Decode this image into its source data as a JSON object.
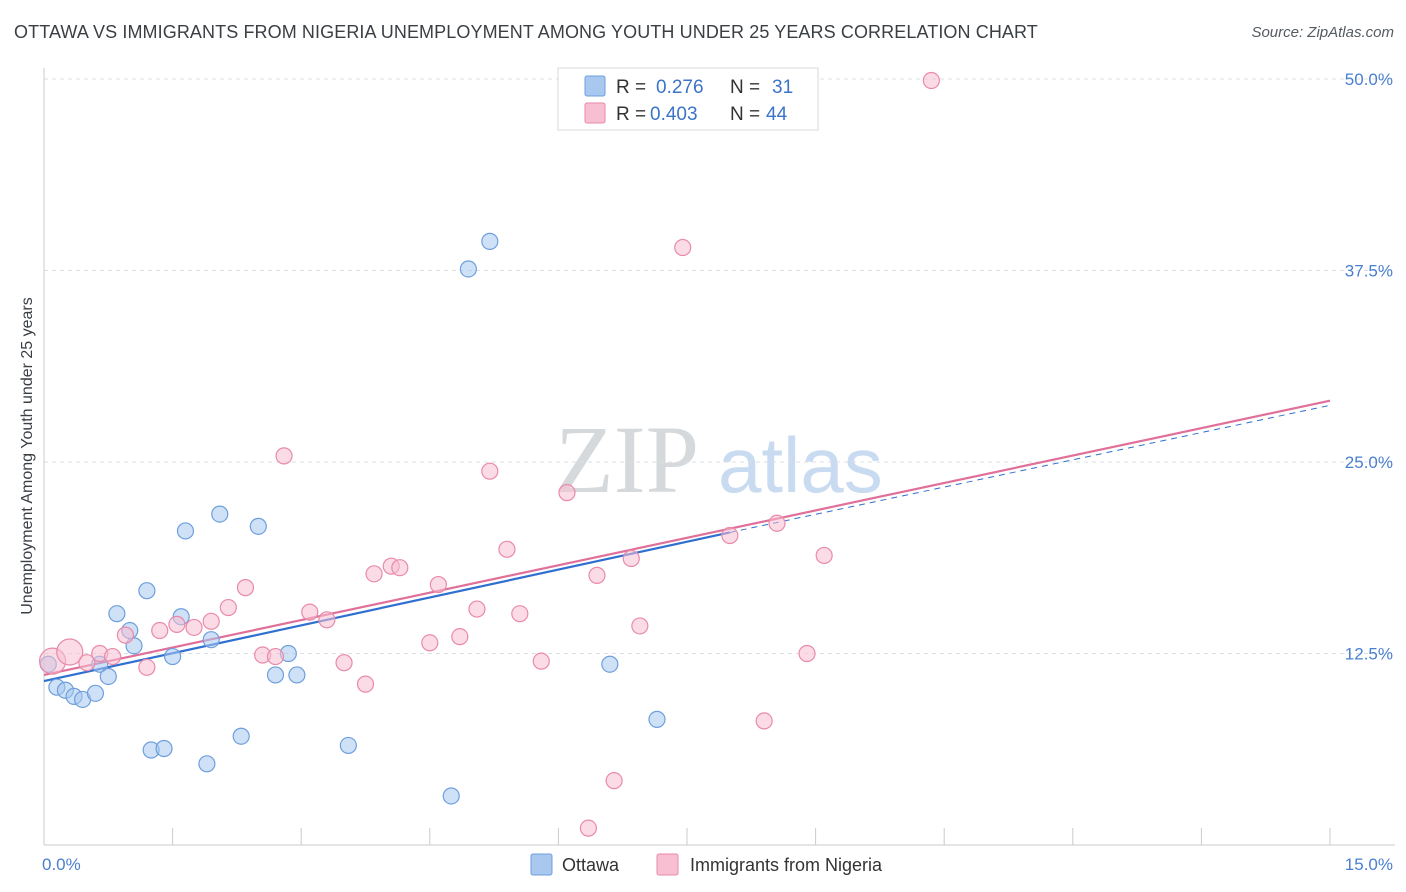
{
  "chart_data": {
    "type": "scatter",
    "title": "OTTAWA VS IMMIGRANTS FROM NIGERIA UNEMPLOYMENT AMONG YOUTH UNDER 25 YEARS CORRELATION CHART",
    "source": "Source: ZipAtlas.com",
    "xlabel": "",
    "ylabel": "Unemployment Among Youth under 25 years",
    "xlim": [
      0,
      15
    ],
    "ylim": [
      0,
      50
    ],
    "x_tick_labels": [
      "0.0%",
      "15.0%"
    ],
    "y_ticks": [
      12.5,
      25.0,
      37.5,
      50.0
    ],
    "y_tick_labels": [
      "12.5%",
      "25.0%",
      "37.5%",
      "50.0%"
    ],
    "grid": true,
    "legend_position": "top-center",
    "watermark": {
      "part1": "ZIP",
      "part2": "atlas"
    },
    "legend": [
      {
        "name": "Ottawa",
        "r_label": "R =",
        "r_value": "0.276",
        "n_label": "N =",
        "n_value": "31",
        "color": "#a8c8f0",
        "stroke": "#6e9fdc"
      },
      {
        "name": "Immigrants from Nigeria",
        "r_label": "R =",
        "r_value": "0.403",
        "n_label": "N =",
        "n_value": "44",
        "color": "#f7bfd1",
        "stroke": "#e98aa9"
      }
    ],
    "series": [
      {
        "name": "Ottawa",
        "color": "#a8c8f0",
        "stroke": "#6e9fdc",
        "trend": {
          "x": [
            0,
            8.0
          ],
          "y": [
            10.7,
            20.4
          ],
          "color": "#2f6fd0",
          "dash_x": [
            8.0,
            15.0
          ],
          "dash_y": [
            20.4,
            28.7
          ]
        },
        "points": [
          [
            0.05,
            11.8
          ],
          [
            0.15,
            10.3
          ],
          [
            0.25,
            10.1
          ],
          [
            0.35,
            9.7
          ],
          [
            0.45,
            9.5
          ],
          [
            0.6,
            9.9
          ],
          [
            0.65,
            11.8
          ],
          [
            0.75,
            11.0
          ],
          [
            0.85,
            15.1
          ],
          [
            1.0,
            14.0
          ],
          [
            1.05,
            13.0
          ],
          [
            1.2,
            16.6
          ],
          [
            1.25,
            6.2
          ],
          [
            1.4,
            6.3
          ],
          [
            1.5,
            12.3
          ],
          [
            1.6,
            14.9
          ],
          [
            1.65,
            20.5
          ],
          [
            1.9,
            5.3
          ],
          [
            1.95,
            13.4
          ],
          [
            2.05,
            21.6
          ],
          [
            2.3,
            7.1
          ],
          [
            2.5,
            20.8
          ],
          [
            2.7,
            11.1
          ],
          [
            2.85,
            12.5
          ],
          [
            2.95,
            11.1
          ],
          [
            3.55,
            6.5
          ],
          [
            4.75,
            3.2
          ],
          [
            4.95,
            37.6
          ],
          [
            5.2,
            39.4
          ],
          [
            6.6,
            11.8
          ],
          [
            7.15,
            8.2
          ]
        ]
      },
      {
        "name": "Immigrants from Nigeria",
        "color": "#f7bfd1",
        "stroke": "#e98aa9",
        "trend": {
          "x": [
            0,
            15.0
          ],
          "y": [
            11.1,
            29.0
          ],
          "color": "#e0709a"
        },
        "points": [
          [
            0.1,
            12.0
          ],
          [
            0.3,
            12.6
          ],
          [
            0.5,
            11.9
          ],
          [
            0.65,
            12.5
          ],
          [
            0.8,
            12.3
          ],
          [
            0.95,
            13.7
          ],
          [
            1.2,
            11.6
          ],
          [
            1.35,
            14.0
          ],
          [
            1.55,
            14.4
          ],
          [
            1.75,
            14.2
          ],
          [
            1.95,
            14.6
          ],
          [
            2.15,
            15.5
          ],
          [
            2.35,
            16.8
          ],
          [
            2.55,
            12.4
          ],
          [
            2.7,
            12.3
          ],
          [
            2.8,
            25.4
          ],
          [
            3.1,
            15.2
          ],
          [
            3.3,
            14.7
          ],
          [
            3.5,
            11.9
          ],
          [
            3.75,
            10.5
          ],
          [
            3.85,
            17.7
          ],
          [
            4.05,
            18.2
          ],
          [
            4.15,
            18.1
          ],
          [
            4.5,
            13.2
          ],
          [
            4.6,
            17.0
          ],
          [
            4.85,
            13.6
          ],
          [
            5.05,
            15.4
          ],
          [
            5.2,
            24.4
          ],
          [
            5.4,
            19.3
          ],
          [
            5.55,
            15.1
          ],
          [
            5.8,
            12.0
          ],
          [
            6.1,
            23.0
          ],
          [
            6.35,
            1.1
          ],
          [
            6.45,
            17.6
          ],
          [
            6.65,
            4.2
          ],
          [
            6.85,
            18.7
          ],
          [
            6.95,
            14.3
          ],
          [
            7.45,
            39.0
          ],
          [
            8.0,
            20.2
          ],
          [
            8.4,
            8.1
          ],
          [
            8.55,
            21.0
          ],
          [
            8.9,
            12.5
          ],
          [
            9.1,
            18.9
          ],
          [
            10.35,
            49.9
          ]
        ]
      }
    ]
  }
}
